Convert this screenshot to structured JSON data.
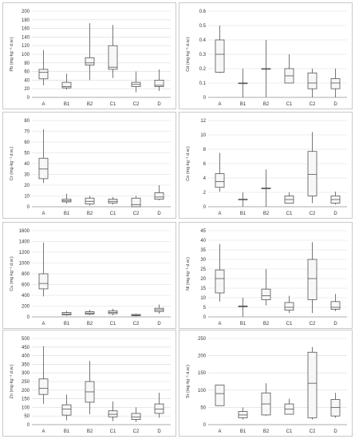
{
  "chart_data": [
    {
      "type": "boxplot",
      "ylabel": "Pb (mg·kg⁻¹ d.w.)",
      "ylim": [
        0,
        200
      ],
      "yticks": [
        0,
        20,
        40,
        60,
        80,
        100,
        120,
        140,
        160,
        180,
        200
      ],
      "categories": [
        "A",
        "B1",
        "B2",
        "C1",
        "C2",
        "D"
      ],
      "boxes": [
        {
          "min": 28,
          "q1": 43,
          "median": 58,
          "q3": 65,
          "max": 110
        },
        {
          "min": 18,
          "q1": 22,
          "median": 25,
          "q3": 35,
          "max": 55
        },
        {
          "min": 40,
          "q1": 75,
          "median": 80,
          "q3": 92,
          "max": 172
        },
        {
          "min": 45,
          "q1": 65,
          "median": 70,
          "q3": 120,
          "max": 168
        },
        {
          "min": 12,
          "q1": 25,
          "median": 30,
          "q3": 35,
          "max": 60
        },
        {
          "min": 15,
          "q1": 25,
          "median": 28,
          "q3": 40,
          "max": 65
        }
      ]
    },
    {
      "type": "boxplot",
      "ylabel": "Cd (mg·kg⁻¹ d.w.)",
      "ylim": [
        0,
        0.6
      ],
      "yticks": [
        0,
        0.1,
        0.2,
        0.3,
        0.4,
        0.5,
        0.6
      ],
      "categories": [
        "A",
        "B1",
        "B2",
        "C1",
        "C2",
        "D"
      ],
      "boxes": [
        {
          "min": 0.17,
          "q1": 0.175,
          "median": 0.3,
          "q3": 0.4,
          "max": 0.5
        },
        {
          "min": 0.0,
          "q1": 0.1,
          "median": 0.1,
          "q3": 0.1,
          "max": 0.2
        },
        {
          "min": 0.0,
          "q1": 0.2,
          "median": 0.2,
          "q3": 0.2,
          "max": 0.4
        },
        {
          "min": 0.1,
          "q1": 0.1,
          "median": 0.15,
          "q3": 0.2,
          "max": 0.3
        },
        {
          "min": 0.0,
          "q1": 0.06,
          "median": 0.1,
          "q3": 0.17,
          "max": 0.2
        },
        {
          "min": 0.0,
          "q1": 0.06,
          "median": 0.1,
          "q3": 0.13,
          "max": 0.2
        }
      ]
    },
    {
      "type": "boxplot",
      "ylabel": "Cr (mg·kg⁻¹ d.w.)",
      "ylim": [
        0,
        80
      ],
      "yticks": [
        0,
        10,
        20,
        30,
        40,
        50,
        60,
        70,
        80
      ],
      "categories": [
        "A",
        "B1",
        "B2",
        "C1",
        "C2",
        "D"
      ],
      "boxes": [
        {
          "min": 22,
          "q1": 26,
          "median": 35,
          "q3": 45,
          "max": 72
        },
        {
          "min": 3,
          "q1": 4.5,
          "median": 5.5,
          "q3": 7,
          "max": 12
        },
        {
          "min": 1,
          "q1": 2.5,
          "median": 5,
          "q3": 8,
          "max": 10
        },
        {
          "min": 2,
          "q1": 3.5,
          "median": 5,
          "q3": 7,
          "max": 9
        },
        {
          "min": 0,
          "q1": 0,
          "median": 2,
          "q3": 8,
          "max": 10
        },
        {
          "min": 6,
          "q1": 7,
          "median": 9,
          "q3": 13,
          "max": 20
        }
      ]
    },
    {
      "type": "boxplot",
      "ylabel": "Co (mg·kg⁻¹ d.w.)",
      "ylim": [
        0,
        12
      ],
      "yticks": [
        0,
        2,
        4,
        6,
        8,
        10,
        12
      ],
      "categories": [
        "A",
        "B1",
        "B2",
        "C1",
        "C2",
        "D"
      ],
      "boxes": [
        {
          "min": 2.1,
          "q1": 2.7,
          "median": 3.5,
          "q3": 4.6,
          "max": 7.5
        },
        {
          "min": 0,
          "q1": 1.0,
          "median": 1.0,
          "q3": 1.05,
          "max": 2
        },
        {
          "min": 0,
          "q1": 2.5,
          "median": 2.55,
          "q3": 2.6,
          "max": 5.2
        },
        {
          "min": 0.5,
          "q1": 0.5,
          "median": 1.0,
          "q3": 1.5,
          "max": 2
        },
        {
          "min": 0.5,
          "q1": 1.5,
          "median": 4.5,
          "q3": 7.7,
          "max": 10.4
        },
        {
          "min": 0.3,
          "q1": 0.5,
          "median": 1.0,
          "q3": 1.5,
          "max": 2.1
        }
      ]
    },
    {
      "type": "boxplot",
      "ylabel": "Cu (mg·kg⁻¹ d.w.)",
      "ylim": [
        0,
        1600
      ],
      "yticks": [
        0,
        200,
        400,
        600,
        800,
        1000,
        1200,
        1400,
        1600
      ],
      "categories": [
        "A",
        "B1",
        "B2",
        "C1",
        "C2",
        "D"
      ],
      "boxes": [
        {
          "min": 380,
          "q1": 520,
          "median": 620,
          "q3": 800,
          "max": 1380
        },
        {
          "min": 20,
          "q1": 35,
          "median": 55,
          "q3": 80,
          "max": 110
        },
        {
          "min": 30,
          "q1": 50,
          "median": 70,
          "q3": 95,
          "max": 130
        },
        {
          "min": 30,
          "q1": 60,
          "median": 80,
          "q3": 110,
          "max": 150
        },
        {
          "min": 10,
          "q1": 20,
          "median": 30,
          "q3": 45,
          "max": 60
        },
        {
          "min": 60,
          "q1": 100,
          "median": 130,
          "q3": 160,
          "max": 230
        }
      ]
    },
    {
      "type": "boxplot",
      "ylabel": "Ni (mg·kg⁻¹ d.w.)",
      "ylim": [
        0,
        45
      ],
      "yticks": [
        0,
        5,
        10,
        15,
        20,
        25,
        30,
        35,
        40,
        45
      ],
      "categories": [
        "A",
        "B1",
        "B2",
        "C1",
        "C2",
        "D"
      ],
      "boxes": [
        {
          "min": 8,
          "q1": 12.5,
          "median": 20,
          "q3": 24.5,
          "max": 38
        },
        {
          "min": 0,
          "q1": 5.3,
          "median": 5.5,
          "q3": 5.7,
          "max": 10
        },
        {
          "min": 6,
          "q1": 9,
          "median": 11,
          "q3": 14.5,
          "max": 25
        },
        {
          "min": 2,
          "q1": 3.5,
          "median": 5,
          "q3": 7.5,
          "max": 11
        },
        {
          "min": 2,
          "q1": 9,
          "median": 20,
          "q3": 30,
          "max": 39
        },
        {
          "min": 3,
          "q1": 4,
          "median": 5,
          "q3": 8,
          "max": 12
        }
      ]
    },
    {
      "type": "boxplot",
      "ylabel": "Zn (mg·kg⁻¹ d.w.)",
      "ylim": [
        0,
        500
      ],
      "yticks": [
        0,
        50,
        100,
        150,
        200,
        250,
        300,
        350,
        400,
        450,
        500
      ],
      "categories": [
        "A",
        "B1",
        "B2",
        "C1",
        "C2",
        "D"
      ],
      "boxes": [
        {
          "min": 120,
          "q1": 175,
          "median": 210,
          "q3": 265,
          "max": 455
        },
        {
          "min": 25,
          "q1": 55,
          "median": 90,
          "q3": 115,
          "max": 175
        },
        {
          "min": 60,
          "q1": 130,
          "median": 190,
          "q3": 250,
          "max": 370
        },
        {
          "min": 20,
          "q1": 45,
          "median": 60,
          "q3": 80,
          "max": 135
        },
        {
          "min": 15,
          "q1": 30,
          "median": 45,
          "q3": 65,
          "max": 100
        },
        {
          "min": 40,
          "q1": 65,
          "median": 90,
          "q3": 120,
          "max": 185
        }
      ]
    },
    {
      "type": "boxplot",
      "ylabel": "Sr (mg·kg⁻¹ d.w.)",
      "ylim": [
        0,
        250
      ],
      "yticks": [
        0,
        50,
        100,
        150,
        200,
        250
      ],
      "categories": [
        "A",
        "B1",
        "B2",
        "C1",
        "C2",
        "D"
      ],
      "boxes": [
        {
          "min": 55,
          "q1": 55,
          "median": 90,
          "q3": 115,
          "max": 115
        },
        {
          "min": 15,
          "q1": 20,
          "median": 28,
          "q3": 38,
          "max": 50
        },
        {
          "min": 25,
          "q1": 28,
          "median": 60,
          "q3": 92,
          "max": 120
        },
        {
          "min": 30,
          "q1": 30,
          "median": 45,
          "q3": 60,
          "max": 75
        },
        {
          "min": 15,
          "q1": 20,
          "median": 120,
          "q3": 210,
          "max": 225
        },
        {
          "min": 20,
          "q1": 25,
          "median": 50,
          "q3": 73,
          "max": 92
        }
      ]
    }
  ]
}
